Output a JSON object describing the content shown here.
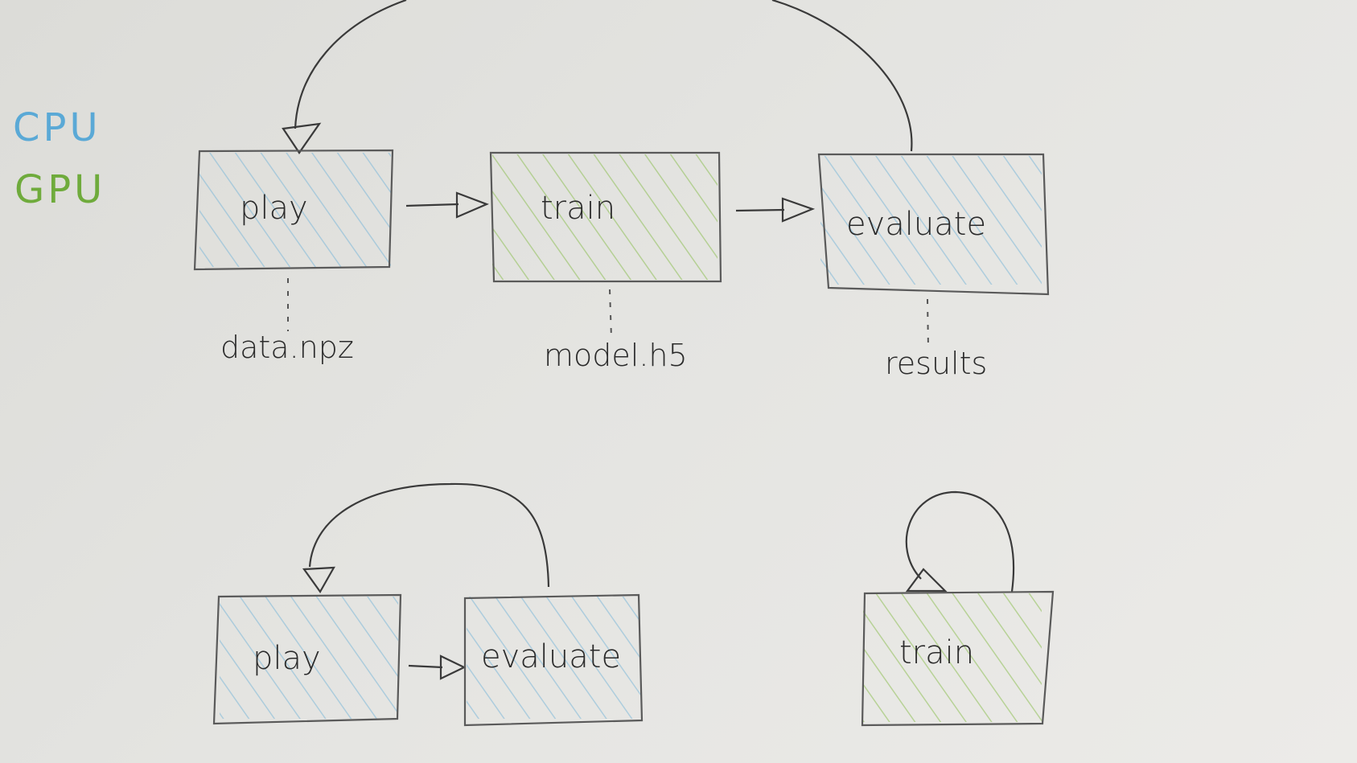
{
  "legend": {
    "cpu": {
      "label": "CPU",
      "color": "#5aa9d6"
    },
    "gpu": {
      "label": "GPU",
      "color": "#6fab3c"
    }
  },
  "top_row": {
    "play": "play",
    "train": "train",
    "evaluate": "evaluate",
    "outputs": {
      "play": "data.npz",
      "train": "model.h5",
      "evaluate": "results"
    }
  },
  "bottom_left": {
    "play": "play",
    "evaluate": "evaluate"
  },
  "bottom_right": {
    "train": "train"
  },
  "hatch_colors": {
    "cpu": "#7db8d9",
    "gpu": "#8dbf55"
  }
}
